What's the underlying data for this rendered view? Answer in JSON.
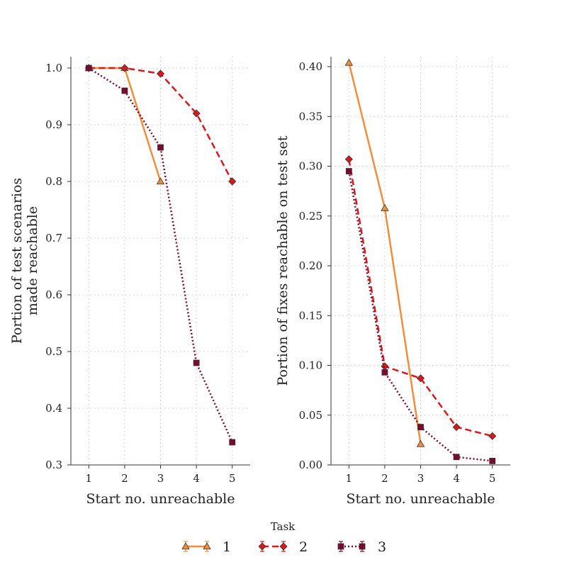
{
  "legend": {
    "title": "Task",
    "entries": [
      {
        "label": "1",
        "color": "#f28e3a",
        "marker": "triangle",
        "dash": "solid"
      },
      {
        "label": "2",
        "color": "#d7191c",
        "marker": "diamond",
        "dash": "dashed"
      },
      {
        "label": "3",
        "color": "#7a0a2e",
        "marker": "square",
        "dash": "dotted"
      }
    ]
  },
  "chart_data": [
    {
      "type": "line",
      "xlabel": "Start no. unreachable",
      "ylabel_lines": [
        "Portion of test scenarios",
        "made reachable"
      ],
      "xlim": [
        0.5,
        5.5
      ],
      "ylim": [
        0.3,
        1.02
      ],
      "xticks": [
        1,
        2,
        3,
        4,
        5
      ],
      "yticks": [
        0.3,
        0.4,
        0.5,
        0.6,
        0.7,
        0.8,
        0.9,
        1.0
      ],
      "ytick_labels": [
        "0.3",
        "0.4",
        "0.5",
        "0.6",
        "0.7",
        "0.8",
        "0.9",
        "1.0"
      ],
      "grid": true,
      "series": [
        {
          "name": "1",
          "x": [
            1,
            2,
            3
          ],
          "y": [
            1.0,
            1.0,
            0.8
          ]
        },
        {
          "name": "2",
          "x": [
            1,
            2,
            3,
            4,
            5
          ],
          "y": [
            1.0,
            1.0,
            0.99,
            0.92,
            0.8
          ]
        },
        {
          "name": "3",
          "x": [
            1,
            2,
            3,
            4,
            5
          ],
          "y": [
            1.0,
            0.96,
            0.86,
            0.48,
            0.34
          ]
        }
      ]
    },
    {
      "type": "line",
      "xlabel": "Start no. unreachable",
      "ylabel_lines": [
        "Portion of fixes reachable on test set"
      ],
      "xlim": [
        0.5,
        5.5
      ],
      "ylim": [
        0.0,
        0.41
      ],
      "xticks": [
        1,
        2,
        3,
        4,
        5
      ],
      "yticks": [
        0.0,
        0.05,
        0.1,
        0.15,
        0.2,
        0.25,
        0.3,
        0.35,
        0.4
      ],
      "ytick_labels": [
        "0.00",
        "0.05",
        "0.10",
        "0.15",
        "0.20",
        "0.25",
        "0.30",
        "0.35",
        "0.40"
      ],
      "grid": true,
      "series": [
        {
          "name": "1",
          "x": [
            1,
            2,
            3
          ],
          "y": [
            0.404,
            0.258,
            0.021
          ]
        },
        {
          "name": "2",
          "x": [
            1,
            2,
            3,
            4,
            5
          ],
          "y": [
            0.307,
            0.099,
            0.087,
            0.038,
            0.029
          ]
        },
        {
          "name": "3",
          "x": [
            1,
            2,
            3,
            4,
            5
          ],
          "y": [
            0.295,
            0.093,
            0.038,
            0.008,
            0.004
          ]
        }
      ]
    }
  ]
}
